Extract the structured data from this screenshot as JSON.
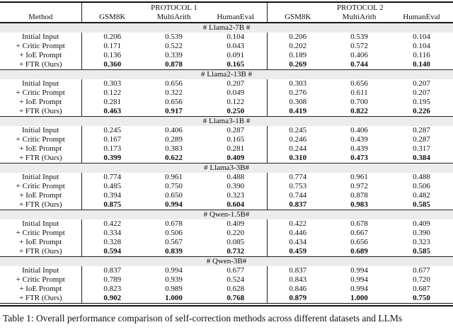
{
  "colors": {
    "section_band": "#ececec",
    "rule": "#111111",
    "text": "#111111",
    "background": "#ffffff"
  },
  "table": {
    "method_header": "Method",
    "protocols": [
      {
        "label": "PROTOCOL 1",
        "columns": [
          "GSM8K",
          "MultiArith",
          "HumanEval"
        ]
      },
      {
        "label": "PROTOCOL 2",
        "columns": [
          "GSM8K",
          "MultiArith",
          "HumanEval"
        ]
      }
    ],
    "sections": [
      {
        "title": "# Llama2-7B #",
        "rows": [
          {
            "label": "Initial Input",
            "p1": [
              "0.206",
              "0.539",
              "0.104"
            ],
            "p2": [
              "0.206",
              "0.539",
              "0.104"
            ],
            "bold": false
          },
          {
            "label": "+ Critic Prompt",
            "p1": [
              "0.171",
              "0.522",
              "0.043"
            ],
            "p2": [
              "0.202",
              "0.572",
              "0.104"
            ],
            "bold": false
          },
          {
            "label": "+ IoE Prompt",
            "p1": [
              "0.136",
              "0.339",
              "0.091"
            ],
            "p2": [
              "0.189",
              "0.406",
              "0.116"
            ],
            "bold": false
          },
          {
            "label": "+ FTR (Ours)",
            "p1": [
              "0.360",
              "0.878",
              "0.165"
            ],
            "p2": [
              "0.269",
              "0.744",
              "0.140"
            ],
            "bold": true
          }
        ]
      },
      {
        "title": "# Llama2-13B #",
        "rows": [
          {
            "label": "Initial Input",
            "p1": [
              "0.303",
              "0.656",
              "0.207"
            ],
            "p2": [
              "0.303",
              "0.656",
              "0.207"
            ],
            "bold": false
          },
          {
            "label": "+ Critic Prompt",
            "p1": [
              "0.122",
              "0.322",
              "0.049"
            ],
            "p2": [
              "0.276",
              "0.611",
              "0.207"
            ],
            "bold": false
          },
          {
            "label": "+ IoE Prompt",
            "p1": [
              "0.281",
              "0.656",
              "0.122"
            ],
            "p2": [
              "0.308",
              "0.700",
              "0.195"
            ],
            "bold": false
          },
          {
            "label": "+ FTR (Ours)",
            "p1": [
              "0.463",
              "0.917",
              "0.250"
            ],
            "p2": [
              "0.419",
              "0.822",
              "0.226"
            ],
            "bold": true
          }
        ]
      },
      {
        "title": "# Llama3-1B #",
        "rows": [
          {
            "label": "Initial Input",
            "p1": [
              "0.245",
              "0.406",
              "0.287"
            ],
            "p2": [
              "0.245",
              "0.406",
              "0.287"
            ],
            "bold": false
          },
          {
            "label": "+ Critic Prompt",
            "p1": [
              "0.167",
              "0.289",
              "0.165"
            ],
            "p2": [
              "0.246",
              "0.439",
              "0.287"
            ],
            "bold": false
          },
          {
            "label": "+ IoE Prompt",
            "p1": [
              "0.173",
              "0.383",
              "0.281"
            ],
            "p2": [
              "0.244",
              "0.439",
              "0.317"
            ],
            "bold": false
          },
          {
            "label": "+ FTR (Ours)",
            "p1": [
              "0.399",
              "0.622",
              "0.409"
            ],
            "p2": [
              "0.310",
              "0.473",
              "0.384"
            ],
            "bold": true
          }
        ]
      },
      {
        "title": "# Llama3-3B#",
        "rows": [
          {
            "label": "Initial Input",
            "p1": [
              "0.774",
              "0.961",
              "0.488"
            ],
            "p2": [
              "0.774",
              "0.961",
              "0.488"
            ],
            "bold": false
          },
          {
            "label": "+ Critic Prompt",
            "p1": [
              "0.485",
              "0.750",
              "0.390"
            ],
            "p2": [
              "0.753",
              "0.972",
              "0.506"
            ],
            "bold": false
          },
          {
            "label": "+ IoE Prompt",
            "p1": [
              "0.394",
              "0.650",
              "0.323"
            ],
            "p2": [
              "0.744",
              "0.878",
              "0.482"
            ],
            "bold": false
          },
          {
            "label": "+ FTR (Ours)",
            "p1": [
              "0.875",
              "0.994",
              "0.604"
            ],
            "p2": [
              "0.837",
              "0.983",
              "0.585"
            ],
            "bold": true
          }
        ]
      },
      {
        "title": "# Qwen-1.5B#",
        "rows": [
          {
            "label": "Initial Input",
            "p1": [
              "0.422",
              "0.678",
              "0.409"
            ],
            "p2": [
              "0.422",
              "0.678",
              "0.409"
            ],
            "bold": false
          },
          {
            "label": "+ Critic Prompt",
            "p1": [
              "0.334",
              "0.506",
              "0.220"
            ],
            "p2": [
              "0.446",
              "0.667",
              "0.390"
            ],
            "bold": false
          },
          {
            "label": "+ IoE Prompt",
            "p1": [
              "0.328",
              "0.567",
              "0.085"
            ],
            "p2": [
              "0.434",
              "0.656",
              "0.323"
            ],
            "bold": false
          },
          {
            "label": "+ FTR (Ours)",
            "p1": [
              "0.594",
              "0.839",
              "0.732"
            ],
            "p2": [
              "0.459",
              "0.689",
              "0.585"
            ],
            "bold": true
          }
        ]
      },
      {
        "title": "# Qwen-3B#",
        "rows": [
          {
            "label": "Initial Input",
            "p1": [
              "0.837",
              "0.994",
              "0.677"
            ],
            "p2": [
              "0.837",
              "0.994",
              "0.677"
            ],
            "bold": false
          },
          {
            "label": "+ Critic Prompt",
            "p1": [
              "0.789",
              "0.939",
              "0.524"
            ],
            "p2": [
              "0.843",
              "0.994",
              "0.720"
            ],
            "bold": false
          },
          {
            "label": "+ IoE Prompt",
            "p1": [
              "0.823",
              "0.989",
              "0.628"
            ],
            "p2": [
              "0.846",
              "0.994",
              "0.687"
            ],
            "bold": false
          },
          {
            "label": "+ FTR (Ours)",
            "p1": [
              "0.902",
              "1.000",
              "0.768"
            ],
            "p2": [
              "0.879",
              "1.000",
              "0.750"
            ],
            "bold": true
          }
        ]
      }
    ]
  },
  "caption": "Table 1: Overall performance comparison of self-correction methods across different datasets and LLMs"
}
